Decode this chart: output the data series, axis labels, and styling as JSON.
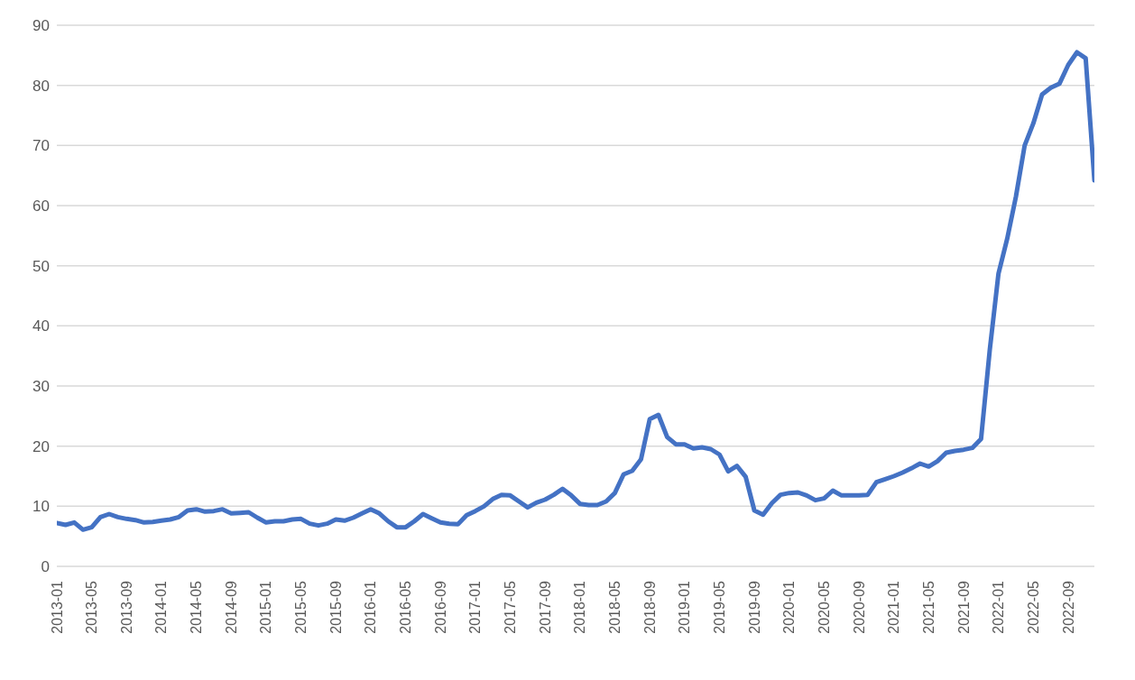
{
  "chart_data": {
    "type": "line",
    "x": [
      "2013-01",
      "2013-02",
      "2013-03",
      "2013-04",
      "2013-05",
      "2013-06",
      "2013-07",
      "2013-08",
      "2013-09",
      "2013-10",
      "2013-11",
      "2013-12",
      "2014-01",
      "2014-02",
      "2014-03",
      "2014-04",
      "2014-05",
      "2014-06",
      "2014-07",
      "2014-08",
      "2014-09",
      "2014-10",
      "2014-11",
      "2014-12",
      "2015-01",
      "2015-02",
      "2015-03",
      "2015-04",
      "2015-05",
      "2015-06",
      "2015-07",
      "2015-08",
      "2015-09",
      "2015-10",
      "2015-11",
      "2015-12",
      "2016-01",
      "2016-02",
      "2016-03",
      "2016-04",
      "2016-05",
      "2016-06",
      "2016-07",
      "2016-08",
      "2016-09",
      "2016-10",
      "2016-11",
      "2016-12",
      "2017-01",
      "2017-02",
      "2017-03",
      "2017-04",
      "2017-05",
      "2017-06",
      "2017-07",
      "2017-08",
      "2017-09",
      "2017-10",
      "2017-11",
      "2017-12",
      "2018-01",
      "2018-02",
      "2018-03",
      "2018-04",
      "2018-05",
      "2018-06",
      "2018-07",
      "2018-08",
      "2018-09",
      "2018-10",
      "2018-11",
      "2018-12",
      "2019-01",
      "2019-02",
      "2019-03",
      "2019-04",
      "2019-05",
      "2019-06",
      "2019-07",
      "2019-08",
      "2019-09",
      "2019-10",
      "2019-11",
      "2019-12",
      "2020-01",
      "2020-02",
      "2020-03",
      "2020-04",
      "2020-05",
      "2020-06",
      "2020-07",
      "2020-08",
      "2020-09",
      "2020-10",
      "2020-11",
      "2020-12",
      "2021-01",
      "2021-02",
      "2021-03",
      "2021-04",
      "2021-05",
      "2021-06",
      "2021-07",
      "2021-08",
      "2021-09",
      "2021-10",
      "2021-11",
      "2021-12",
      "2022-01",
      "2022-02",
      "2022-03",
      "2022-04",
      "2022-05",
      "2022-06",
      "2022-07",
      "2022-08",
      "2022-09",
      "2022-10",
      "2022-11",
      "2022-12"
    ],
    "series": [
      {
        "color": "#4472c4",
        "values": [
          7.2,
          6.9,
          7.3,
          6.1,
          6.5,
          8.2,
          8.7,
          8.2,
          7.9,
          7.7,
          7.3,
          7.4,
          7.6,
          7.8,
          8.2,
          9.3,
          9.5,
          9.1,
          9.2,
          9.5,
          8.8,
          8.9,
          9.0,
          8.1,
          7.3,
          7.5,
          7.5,
          7.8,
          7.9,
          7.1,
          6.8,
          7.1,
          7.8,
          7.6,
          8.1,
          8.8,
          9.5,
          8.8,
          7.5,
          6.5,
          6.5,
          7.5,
          8.7,
          8.0,
          7.3,
          7.1,
          7.0,
          8.5,
          9.2,
          10.0,
          11.2,
          11.9,
          11.8,
          10.8,
          9.8,
          10.6,
          11.1,
          11.9,
          12.9,
          11.8,
          10.4,
          10.2,
          10.2,
          10.8,
          12.2,
          15.3,
          15.9,
          17.8,
          24.5,
          25.2,
          21.5,
          20.3,
          20.3,
          19.6,
          19.8,
          19.5,
          18.6,
          15.8,
          16.7,
          14.9,
          9.3,
          8.6,
          10.5,
          11.9,
          12.2,
          12.3,
          11.8,
          11.0,
          11.3,
          12.6,
          11.8,
          11.8,
          11.8,
          11.9,
          14.0,
          14.5,
          15.0,
          15.6,
          16.3,
          17.1,
          16.6,
          17.5,
          18.9,
          19.2,
          19.4,
          19.7,
          21.2,
          36.0,
          48.7,
          54.5,
          61.5,
          70.0,
          73.7,
          78.5,
          79.6,
          80.3,
          83.4,
          85.5,
          84.5,
          64.2
        ]
      }
    ],
    "xlim": [
      "2013-01",
      "2022-12"
    ],
    "xticks": [
      "2013-01",
      "2013-05",
      "2013-09",
      "2014-01",
      "2014-05",
      "2014-09",
      "2015-01",
      "2015-05",
      "2015-09",
      "2016-01",
      "2016-05",
      "2016-09",
      "2017-01",
      "2017-05",
      "2017-09",
      "2018-01",
      "2018-05",
      "2018-09",
      "2019-01",
      "2019-05",
      "2019-09",
      "2020-01",
      "2020-05",
      "2020-09",
      "2021-01",
      "2021-05",
      "2021-09",
      "2022-01",
      "2022-05",
      "2022-09"
    ],
    "ylim": [
      0,
      90
    ],
    "yticks": [
      0,
      10,
      20,
      30,
      40,
      50,
      60,
      70,
      80,
      90
    ],
    "grid": "y",
    "legend": false,
    "marker": "none",
    "line_style": "solid"
  }
}
